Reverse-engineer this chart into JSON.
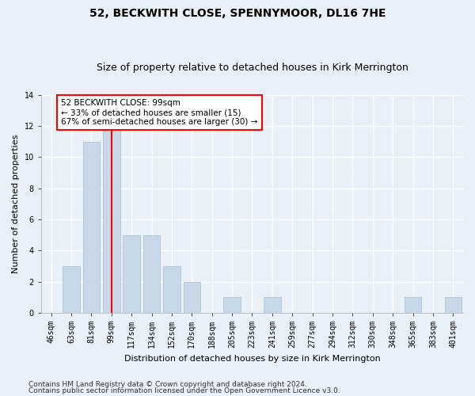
{
  "title": "52, BECKWITH CLOSE, SPENNYMOOR, DL16 7HE",
  "subtitle": "Size of property relative to detached houses in Kirk Merrington",
  "xlabel": "Distribution of detached houses by size in Kirk Merrington",
  "ylabel": "Number of detached properties",
  "categories": [
    "46sqm",
    "63sqm",
    "81sqm",
    "99sqm",
    "117sqm",
    "134sqm",
    "152sqm",
    "170sqm",
    "188sqm",
    "205sqm",
    "223sqm",
    "241sqm",
    "259sqm",
    "277sqm",
    "294sqm",
    "312sqm",
    "330sqm",
    "348sqm",
    "365sqm",
    "383sqm",
    "401sqm"
  ],
  "values": [
    0,
    3,
    11,
    12,
    5,
    5,
    3,
    2,
    0,
    1,
    0,
    1,
    0,
    0,
    0,
    0,
    0,
    0,
    1,
    0,
    1
  ],
  "bar_color": "#c8d8e8",
  "bar_edge_color": "#a8bece",
  "redline_index": 3,
  "annotation_line1": "52 BECKWITH CLOSE: 99sqm",
  "annotation_line2": "← 33% of detached houses are smaller (15)",
  "annotation_line3": "67% of semi-detached houses are larger (30) →",
  "annotation_box_color": "white",
  "annotation_box_edge_color": "red",
  "ylim": [
    0,
    14
  ],
  "yticks": [
    0,
    2,
    4,
    6,
    8,
    10,
    12,
    14
  ],
  "footer_line1": "Contains HM Land Registry data © Crown copyright and database right 2024.",
  "footer_line2": "Contains public sector information licensed under the Open Government Licence v3.0.",
  "background_color": "#eaf0f8",
  "plot_background_color": "#eaf0f8",
  "grid_color": "#ffffff",
  "title_fontsize": 10,
  "subtitle_fontsize": 9,
  "xlabel_fontsize": 8,
  "ylabel_fontsize": 8,
  "tick_fontsize": 7,
  "annotation_fontsize": 7.5,
  "footer_fontsize": 6.5
}
